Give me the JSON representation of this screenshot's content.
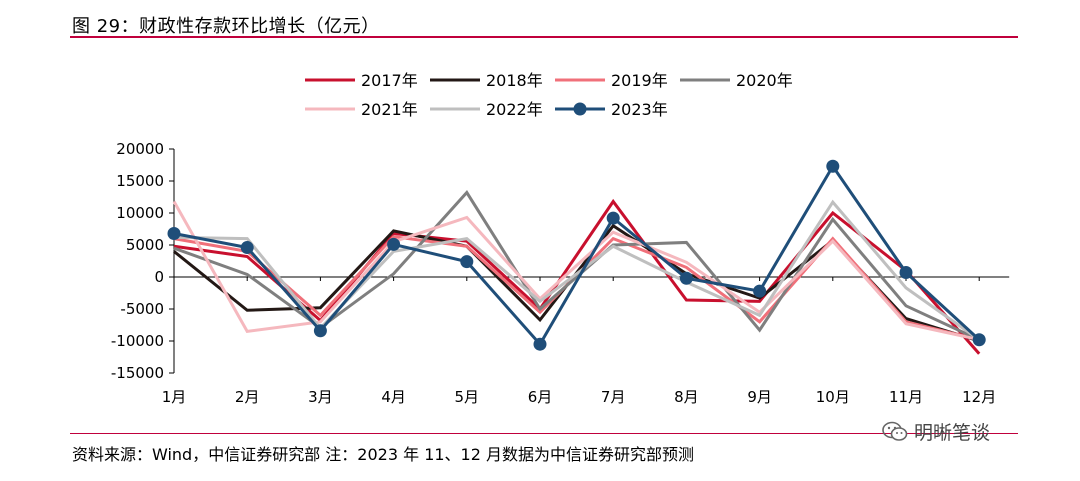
{
  "figure_title": "图 29：财政性存款环比增长（亿元）",
  "source_text": "资料来源：Wind，中信证券研究部  注：2023 年 11、12 月数据为中信证券研究部预测",
  "watermark": "明晰笔谈",
  "watermark_icon": "wechat-icon",
  "colors": {
    "accent_rule": "#c0003c"
  },
  "chart_data": {
    "type": "line",
    "title": "",
    "xlabel": "",
    "ylabel": "",
    "categories": [
      "1月",
      "2月",
      "3月",
      "4月",
      "5月",
      "6月",
      "7月",
      "8月",
      "9月",
      "10月",
      "11月",
      "12月"
    ],
    "ylim": [
      -15000,
      20000
    ],
    "yticks": [
      20000,
      15000,
      10000,
      5000,
      0,
      -5000,
      -10000,
      -15000
    ],
    "ytick_labels": [
      "20000",
      "15000",
      "10000",
      "5000",
      "0",
      "-5000",
      "-10000",
      "-15000"
    ],
    "legend_position": "top-center",
    "grid": false,
    "series": [
      {
        "name": "2017年",
        "color": "#c8102e",
        "marker": false,
        "values": [
          4800,
          3200,
          -6800,
          6800,
          5600,
          -5000,
          11800,
          -3600,
          -3800,
          10000,
          1000,
          -12000
        ]
      },
      {
        "name": "2018年",
        "color": "#231815",
        "marker": false,
        "values": [
          4000,
          -5200,
          -4800,
          7200,
          4800,
          -6700,
          8000,
          500,
          -3300,
          5700,
          -6500,
          -10000
        ]
      },
      {
        "name": "2019年",
        "color": "#f0707a",
        "marker": false,
        "values": [
          6000,
          4000,
          -6000,
          6300,
          4800,
          -5500,
          6000,
          1500,
          -7000,
          6000,
          -7000,
          -9800
        ]
      },
      {
        "name": "2020年",
        "color": "#7f7f7f",
        "marker": false,
        "values": [
          4500,
          400,
          -7900,
          500,
          13200,
          -5000,
          5000,
          5400,
          -8300,
          9000,
          -4500,
          -9800
        ]
      },
      {
        "name": "2021年",
        "color": "#f5b8be",
        "marker": false,
        "values": [
          11800,
          -8500,
          -7000,
          5500,
          9300,
          -3400,
          7000,
          2300,
          -5500,
          5600,
          -7300,
          -9800
        ]
      },
      {
        "name": "2022年",
        "color": "#bfbfbf",
        "marker": false,
        "values": [
          6200,
          6000,
          -8000,
          4000,
          6000,
          -3800,
          4800,
          -800,
          -6000,
          11700,
          -1700,
          -9800
        ]
      },
      {
        "name": "2023年",
        "color": "#1f4e79",
        "marker": true,
        "values": [
          6800,
          4600,
          -8400,
          5100,
          2400,
          -10500,
          9200,
          -200,
          -2200,
          17300,
          700,
          -9800
        ]
      }
    ]
  }
}
